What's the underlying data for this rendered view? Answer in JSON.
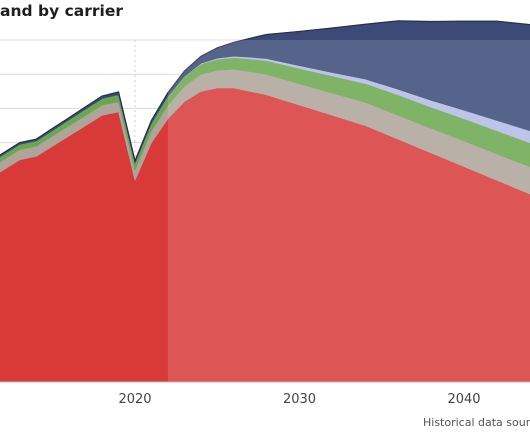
{
  "chart_data": {
    "type": "area",
    "title": "and by carrier",
    "source_note": "Historical data sourc",
    "xlabel": "",
    "ylabel": "",
    "grid": true,
    "xlim": [
      2011,
      2047
    ],
    "ylim": [
      0,
      10
    ],
    "x_ticks": [
      "2020",
      "2030",
      "2040"
    ],
    "projection_start": 2022,
    "x": [
      2011,
      2012,
      2013,
      2014,
      2015,
      2016,
      2017,
      2018,
      2019,
      2020,
      2021,
      2022,
      2023,
      2024,
      2025,
      2026,
      2027,
      2028,
      2030,
      2032,
      2034,
      2036,
      2038,
      2040,
      2042,
      2044,
      2046,
      2047
    ],
    "series": [
      {
        "color": "#d83a3a",
        "values": [
          5.9,
          6.2,
          6.5,
          6.6,
          6.9,
          7.2,
          7.5,
          7.8,
          7.9,
          5.9,
          7.0,
          7.7,
          8.2,
          8.5,
          8.6,
          8.6,
          8.5,
          8.4,
          8.1,
          7.8,
          7.5,
          7.1,
          6.7,
          6.3,
          5.9,
          5.5,
          5.0,
          4.8
        ]
      },
      {
        "color": "#aea49a",
        "values": [
          0.3,
          0.3,
          0.3,
          0.3,
          0.3,
          0.3,
          0.3,
          0.3,
          0.3,
          0.3,
          0.35,
          0.4,
          0.45,
          0.5,
          0.52,
          0.55,
          0.58,
          0.6,
          0.62,
          0.65,
          0.68,
          0.7,
          0.72,
          0.75,
          0.77,
          0.8,
          0.82,
          0.83
        ]
      },
      {
        "color": "#6aa84f",
        "values": [
          0.15,
          0.15,
          0.15,
          0.15,
          0.16,
          0.17,
          0.18,
          0.19,
          0.2,
          0.2,
          0.22,
          0.25,
          0.28,
          0.3,
          0.32,
          0.34,
          0.37,
          0.4,
          0.45,
          0.5,
          0.55,
          0.6,
          0.62,
          0.65,
          0.68,
          0.7,
          0.72,
          0.73
        ]
      },
      {
        "color": "#b3bbe6",
        "values": [
          0.0,
          0.0,
          0.0,
          0.0,
          0.0,
          0.0,
          0.0,
          0.0,
          0.0,
          0.0,
          0.0,
          0.01,
          0.01,
          0.02,
          0.03,
          0.04,
          0.05,
          0.06,
          0.08,
          0.1,
          0.13,
          0.16,
          0.2,
          0.25,
          0.3,
          0.35,
          0.4,
          0.42
        ]
      },
      {
        "color": "#3b4a77",
        "values": [
          0.05,
          0.05,
          0.05,
          0.05,
          0.06,
          0.06,
          0.07,
          0.07,
          0.08,
          0.07,
          0.08,
          0.1,
          0.15,
          0.2,
          0.3,
          0.4,
          0.55,
          0.7,
          1.0,
          1.3,
          1.6,
          2.0,
          2.3,
          2.6,
          2.9,
          3.1,
          3.3,
          3.4
        ]
      }
    ]
  }
}
